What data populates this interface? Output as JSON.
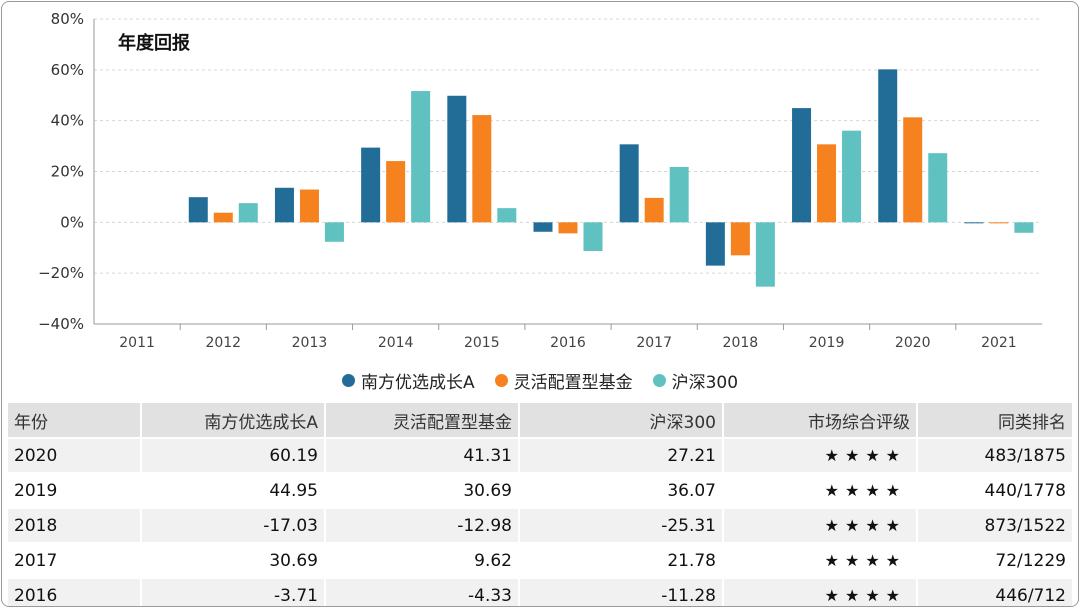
{
  "chart_data": {
    "type": "bar",
    "title": "年度回报",
    "categories": [
      "2011",
      "2012",
      "2013",
      "2014",
      "2015",
      "2016",
      "2017",
      "2018",
      "2019",
      "2020",
      "2021"
    ],
    "series": [
      {
        "name": "南方优选成长A",
        "color": "#216d97",
        "values": [
          null,
          9.9,
          13.6,
          29.4,
          49.8,
          -3.71,
          30.69,
          -17.03,
          44.95,
          60.19,
          -0.3
        ]
      },
      {
        "name": "灵活配置型基金",
        "color": "#f5821f",
        "values": [
          null,
          3.8,
          12.9,
          24.1,
          42.2,
          -4.33,
          9.62,
          -12.98,
          30.69,
          41.31,
          -0.4
        ]
      },
      {
        "name": "沪深300",
        "color": "#5fc2c0",
        "values": [
          null,
          7.55,
          -7.65,
          51.66,
          5.58,
          -11.28,
          21.78,
          -25.31,
          36.07,
          27.21,
          -4.1
        ]
      }
    ],
    "ylim": [
      -40,
      80
    ],
    "yticks": [
      "80%",
      "60%",
      "40%",
      "20%",
      "0%",
      "−20%",
      "−40%"
    ],
    "ytick_values": [
      80,
      60,
      40,
      20,
      0,
      -20,
      -40
    ],
    "grid": true,
    "legend_position": "bottom"
  },
  "table": {
    "headers": [
      "年份",
      "南方优选成长A",
      "灵活配置型基金",
      "沪深300",
      "市场综合评级",
      "同类排名"
    ],
    "rows": [
      {
        "year": "2020",
        "fund": "60.19",
        "peer": "41.31",
        "index": "27.21",
        "rating": "★★★★",
        "rank": "483/1875"
      },
      {
        "year": "2019",
        "fund": "44.95",
        "peer": "30.69",
        "index": "36.07",
        "rating": "★★★★",
        "rank": "440/1778"
      },
      {
        "year": "2018",
        "fund": "-17.03",
        "peer": "-12.98",
        "index": "-25.31",
        "rating": "★★★★",
        "rank": "873/1522"
      },
      {
        "year": "2017",
        "fund": "30.69",
        "peer": "9.62",
        "index": "21.78",
        "rating": "★★★★",
        "rank": "72/1229"
      },
      {
        "year": "2016",
        "fund": "-3.71",
        "peer": "-4.33",
        "index": "-11.28",
        "rating": "★★★★",
        "rank": "446/712"
      }
    ]
  }
}
